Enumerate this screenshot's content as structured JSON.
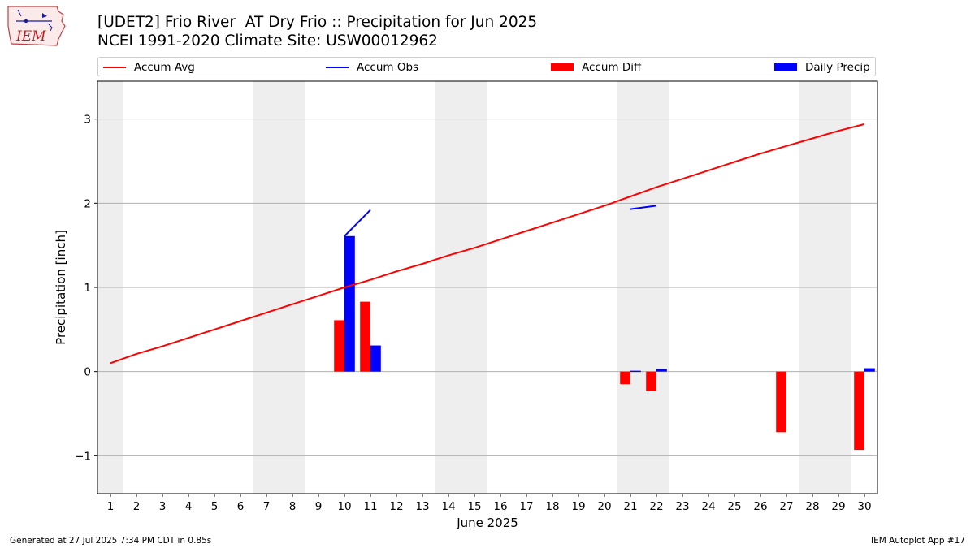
{
  "header": {
    "title_line1": "[UDET2] Frio River  AT Dry Frio :: Precipitation for Jun 2025",
    "title_line2": "NCEI 1991-2020 Climate Site: USW00012962",
    "logo_text": "IEM"
  },
  "legend": {
    "accum_avg": "Accum Avg",
    "accum_obs": "Accum Obs",
    "accum_diff": "Accum Diff",
    "daily_precip": "Daily Precip"
  },
  "footer": {
    "generated": "Generated at 27 Jul 2025 7:34 PM CDT in 0.85s",
    "app": "IEM Autoplot App #17"
  },
  "colors": {
    "accum_avg": "#ff0000",
    "accum_obs": "#0000ff",
    "accum_diff": "#ff0000",
    "daily_precip": "#0000ff",
    "weekend_shade": "#eeeeee",
    "grid": "#b0b0b0"
  },
  "chart_data": {
    "type": "bar",
    "xlabel": "June 2025",
    "ylabel": "Precipitation [inch]",
    "x": [
      1,
      2,
      3,
      4,
      5,
      6,
      7,
      8,
      9,
      10,
      11,
      12,
      13,
      14,
      15,
      16,
      17,
      18,
      19,
      20,
      21,
      22,
      23,
      24,
      25,
      26,
      27,
      28,
      29,
      30
    ],
    "xlim": [
      0.5,
      30.5
    ],
    "ylim": [
      -1.45,
      3.45
    ],
    "yticks": [
      -1,
      0,
      1,
      2,
      3
    ],
    "ytick_labels": [
      "−1",
      "0",
      "1",
      "2",
      "3"
    ],
    "grid": "horizontal",
    "legend_position": "top",
    "weekend_days": [
      1,
      7,
      8,
      14,
      15,
      21,
      22,
      28,
      29
    ],
    "series": [
      {
        "name": "Accum Avg",
        "kind": "line",
        "values": [
          0.1,
          0.21,
          0.3,
          0.4,
          0.5,
          0.6,
          0.7,
          0.8,
          0.9,
          1.0,
          1.09,
          1.19,
          1.28,
          1.38,
          1.47,
          1.57,
          1.67,
          1.77,
          1.87,
          1.97,
          2.08,
          2.19,
          2.29,
          2.39,
          2.49,
          2.59,
          2.68,
          2.77,
          2.86,
          2.94
        ]
      },
      {
        "name": "Accum Obs",
        "kind": "line",
        "segments": [
          {
            "x": [
              10,
              11
            ],
            "y": [
              1.61,
              1.92
            ]
          },
          {
            "x": [
              21,
              22
            ],
            "y": [
              1.93,
              1.97
            ]
          }
        ]
      },
      {
        "name": "Accum Diff",
        "kind": "bar",
        "points": [
          {
            "x": 10,
            "value": 0.61
          },
          {
            "x": 11,
            "value": 0.83
          },
          {
            "x": 21,
            "value": -0.15
          },
          {
            "x": 22,
            "value": -0.23
          },
          {
            "x": 27,
            "value": -0.72
          },
          {
            "x": 30,
            "value": -0.93
          }
        ]
      },
      {
        "name": "Daily Precip",
        "kind": "bar",
        "points": [
          {
            "x": 10,
            "value": 1.61
          },
          {
            "x": 11,
            "value": 0.31
          },
          {
            "x": 21,
            "value": 0.01
          },
          {
            "x": 22,
            "value": 0.03
          },
          {
            "x": 30,
            "value": 0.04
          }
        ]
      }
    ]
  }
}
